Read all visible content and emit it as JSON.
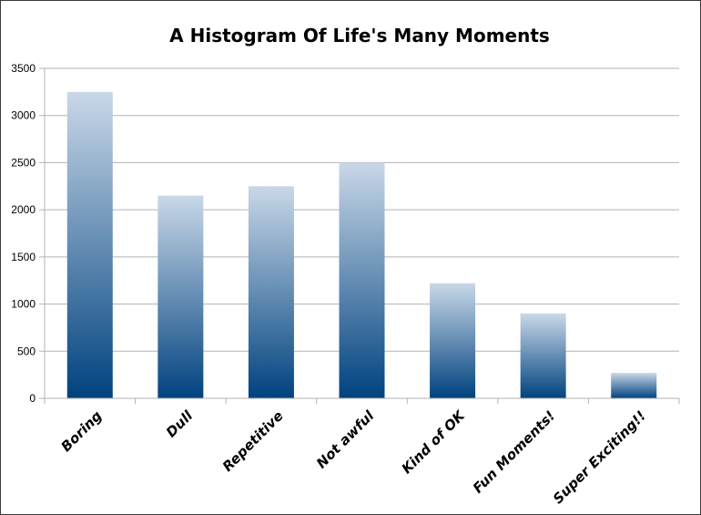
{
  "chart_data": {
    "type": "bar",
    "title": "A Histogram Of Life's Many Moments",
    "xlabel": "",
    "ylabel": "",
    "categories": [
      "Boring",
      "Dull",
      "Repetitive",
      "Not awful",
      "Kind of OK",
      "Fun Moments!",
      "Super Exciting!!"
    ],
    "values": [
      3250,
      2150,
      2250,
      2500,
      1220,
      900,
      270
    ],
    "ylim": [
      0,
      3500
    ],
    "yticks": [
      0,
      500,
      1000,
      1500,
      2000,
      2500,
      3000,
      3500
    ],
    "grid": true,
    "legend": "none",
    "colors": {
      "bar_top": "#c9d8e8",
      "bar_bottom": "#00427f",
      "grid": "#b3b3b3",
      "axis": "#b3b3b3"
    }
  }
}
